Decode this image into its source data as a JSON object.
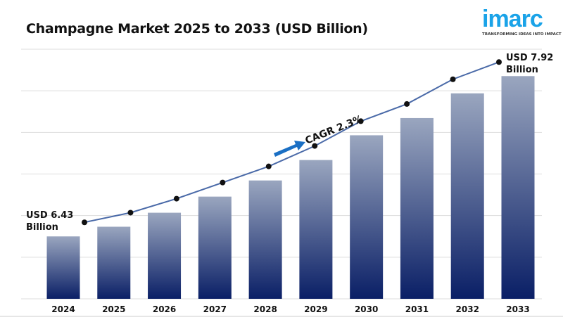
{
  "chart_data": {
    "type": "bar",
    "title": "Champagne Market 2025 to 2033 (USD Billion)",
    "categories": [
      "2024",
      "2025",
      "2026",
      "2027",
      "2028",
      "2029",
      "2030",
      "2031",
      "2032",
      "2033"
    ],
    "values": [
      6.43,
      6.52,
      6.65,
      6.8,
      6.95,
      7.14,
      7.37,
      7.53,
      7.76,
      7.92
    ],
    "ylim": [
      5.85,
      8.17
    ],
    "grid": true,
    "trend_line": true,
    "annotations": {
      "start_line1": "USD 6.43",
      "start_line2": "Billion",
      "end_line1": "USD 7.92",
      "end_line2": "Billion",
      "cagr": "CAGR 2.3%"
    },
    "colors": {
      "bar_top": "#9aa6bf",
      "bar_bottom": "#0a1f66",
      "line": "#4a6aa8",
      "dot": "#111111",
      "arrow": "#1a6fc4",
      "grid": "#dddddd"
    }
  },
  "logo": {
    "word": "imarc",
    "tagline": "TRANSFORMING IDEAS INTO IMPACT"
  }
}
